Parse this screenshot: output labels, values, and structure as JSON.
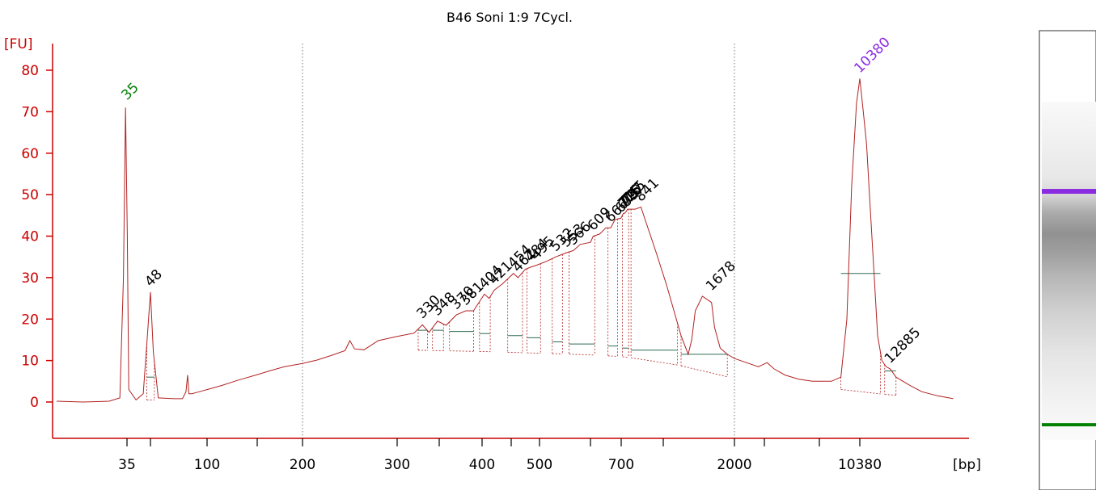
{
  "chart_data": {
    "type": "line",
    "title": "B46 Soni 1:9 7Cycl.",
    "ylabel": "[FU]",
    "xlabel": "[bp]",
    "ylim": [
      -7,
      85
    ],
    "yticks": [
      0,
      10,
      20,
      30,
      40,
      50,
      60,
      70,
      80
    ],
    "x_ticks": [
      {
        "label": "35",
        "x": 35
      },
      {
        "label": "",
        "x": 48
      },
      {
        "label": "100",
        "x": 100
      },
      {
        "label": "",
        "x": 150
      },
      {
        "label": "200",
        "x": 200
      },
      {
        "label": "300",
        "x": 300
      },
      {
        "label": "",
        "x": 350
      },
      {
        "label": "400",
        "x": 400
      },
      {
        "label": "",
        "x": 450
      },
      {
        "label": "500",
        "x": 500
      },
      {
        "label": "",
        "x": 600
      },
      {
        "label": "700",
        "x": 700
      },
      {
        "label": "",
        "x": 1000
      },
      {
        "label": "2000",
        "x": 2000
      },
      {
        "label": "",
        "x": 3000
      },
      {
        "label": "",
        "x": 7000
      },
      {
        "label": "10380",
        "x": 10380
      }
    ],
    "gridlines_x": [
      200,
      2000
    ],
    "colors": {
      "axis": "#cc0000",
      "trace": "#b22222",
      "lower_marker": "#008000",
      "upper_marker": "#8a2be2",
      "peak_label": "#000000"
    },
    "trace": [
      [
        20,
        0.2
      ],
      [
        25,
        0
      ],
      [
        30,
        0.2
      ],
      [
        33,
        1
      ],
      [
        34,
        30
      ],
      [
        34.6,
        71
      ],
      [
        35.2,
        40
      ],
      [
        36,
        3
      ],
      [
        40,
        0.5
      ],
      [
        44,
        2
      ],
      [
        46,
        14
      ],
      [
        48,
        26.5
      ],
      [
        49.5,
        12
      ],
      [
        52,
        1
      ],
      [
        60,
        0.8
      ],
      [
        65,
        0.8
      ],
      [
        67,
        2.5
      ],
      [
        68,
        6.5
      ],
      [
        70,
        2
      ],
      [
        75,
        2
      ],
      [
        85,
        2.4
      ],
      [
        100,
        3
      ],
      [
        115,
        4
      ],
      [
        130,
        5.2
      ],
      [
        150,
        6.6
      ],
      [
        165,
        7.6
      ],
      [
        180,
        8.5
      ],
      [
        200,
        9.3
      ],
      [
        215,
        10.1
      ],
      [
        230,
        11.2
      ],
      [
        245,
        12.4
      ],
      [
        250,
        14.8
      ],
      [
        255,
        12.8
      ],
      [
        265,
        12.6
      ],
      [
        280,
        14.8
      ],
      [
        300,
        15.8
      ],
      [
        320,
        16.6
      ],
      [
        330,
        18.6
      ],
      [
        338,
        16.8
      ],
      [
        348,
        19.5
      ],
      [
        358,
        18.5
      ],
      [
        370,
        21
      ],
      [
        381,
        22
      ],
      [
        390,
        22
      ],
      [
        404,
        26
      ],
      [
        412,
        25
      ],
      [
        421,
        27
      ],
      [
        435,
        28.5
      ],
      [
        454,
        31
      ],
      [
        462,
        30
      ],
      [
        475,
        32
      ],
      [
        484,
        32.5
      ],
      [
        495,
        33
      ],
      [
        515,
        34
      ],
      [
        532,
        35
      ],
      [
        553,
        36
      ],
      [
        566,
        36.5
      ],
      [
        580,
        38
      ],
      [
        600,
        38.5
      ],
      [
        609,
        40
      ],
      [
        630,
        40.5
      ],
      [
        650,
        42
      ],
      [
        666,
        42
      ],
      [
        680,
        44
      ],
      [
        699,
        44.3
      ],
      [
        716,
        45.5
      ],
      [
        725,
        45.5
      ],
      [
        737,
        46
      ],
      [
        745,
        46.5
      ],
      [
        760,
        46.5
      ],
      [
        780,
        46.5
      ],
      [
        800,
        46.5
      ],
      [
        841,
        47
      ],
      [
        870,
        44
      ],
      [
        950,
        36
      ],
      [
        1050,
        28
      ],
      [
        1150,
        22
      ],
      [
        1250,
        16
      ],
      [
        1350,
        11.5
      ],
      [
        1400,
        15
      ],
      [
        1450,
        22
      ],
      [
        1550,
        25.5
      ],
      [
        1678,
        24
      ],
      [
        1720,
        18
      ],
      [
        1800,
        13
      ],
      [
        1900,
        11.5
      ],
      [
        2000,
        10.5
      ],
      [
        2400,
        9.5
      ],
      [
        2800,
        8.5
      ],
      [
        3200,
        9.5
      ],
      [
        3700,
        8
      ],
      [
        4500,
        6.5
      ],
      [
        5500,
        5.5
      ],
      [
        6500,
        5
      ],
      [
        8000,
        5
      ],
      [
        8800,
        6
      ],
      [
        9300,
        20
      ],
      [
        9700,
        52
      ],
      [
        10100,
        72
      ],
      [
        10380,
        78
      ],
      [
        10700,
        70
      ],
      [
        11000,
        62
      ],
      [
        11300,
        48
      ],
      [
        11700,
        30
      ],
      [
        12000,
        16
      ],
      [
        12300,
        10
      ],
      [
        12600,
        8.5
      ],
      [
        12885,
        8
      ],
      [
        13300,
        6
      ],
      [
        15000,
        4
      ],
      [
        18000,
        2.5
      ],
      [
        22000,
        1.5
      ],
      [
        26000,
        0.8
      ]
    ],
    "markers": [
      {
        "label": "35",
        "x": 35,
        "y": 71.5,
        "kind": "lower"
      },
      {
        "label": "10380",
        "x": 10380,
        "y": 78,
        "kind": "upper"
      }
    ],
    "peak_labels": [
      {
        "label": "48",
        "x": 48,
        "y": 26.5
      },
      {
        "label": "330",
        "x": 330,
        "y": 18.8
      },
      {
        "label": "348",
        "x": 348,
        "y": 19.5
      },
      {
        "label": "370",
        "x": 370,
        "y": 21
      },
      {
        "label": "381",
        "x": 381,
        "y": 22
      },
      {
        "label": "404",
        "x": 404,
        "y": 26
      },
      {
        "label": "421",
        "x": 421,
        "y": 27
      },
      {
        "label": "454",
        "x": 454,
        "y": 31
      },
      {
        "label": "462",
        "x": 462,
        "y": 30
      },
      {
        "label": "484",
        "x": 484,
        "y": 32.5
      },
      {
        "label": "495",
        "x": 495,
        "y": 33
      },
      {
        "label": "532",
        "x": 532,
        "y": 35
      },
      {
        "label": "553",
        "x": 553,
        "y": 36
      },
      {
        "label": "566",
        "x": 566,
        "y": 36.5
      },
      {
        "label": "609",
        "x": 609,
        "y": 40
      },
      {
        "label": "666",
        "x": 666,
        "y": 42
      },
      {
        "label": "699",
        "x": 699,
        "y": 44.3
      },
      {
        "label": "716",
        "x": 716,
        "y": 45.5
      },
      {
        "label": "725",
        "x": 725,
        "y": 45.5
      },
      {
        "label": "737",
        "x": 737,
        "y": 46
      },
      {
        "label": "745",
        "x": 745,
        "y": 46.5
      },
      {
        "label": "841",
        "x": 841,
        "y": 47
      },
      {
        "label": "1678",
        "x": 1678,
        "y": 25.5
      },
      {
        "label": "12885",
        "x": 12885,
        "y": 8
      }
    ],
    "peak_bins": [
      {
        "x0": 46,
        "x1": 50,
        "level": 6
      },
      {
        "x0": 325,
        "x1": 336,
        "level": 17.3
      },
      {
        "x0": 342,
        "x1": 355,
        "level": 17.3
      },
      {
        "x0": 362,
        "x1": 390,
        "level": 17
      },
      {
        "x0": 397,
        "x1": 414,
        "level": 16.5
      },
      {
        "x0": 444,
        "x1": 470,
        "level": 16
      },
      {
        "x0": 478,
        "x1": 502,
        "level": 15.5
      },
      {
        "x0": 525,
        "x1": 545,
        "level": 14.5
      },
      {
        "x0": 558,
        "x1": 614,
        "level": 14
      },
      {
        "x0": 657,
        "x1": 688,
        "level": 13.5
      },
      {
        "x0": 709,
        "x1": 753,
        "level": 13
      },
      {
        "x0": 770,
        "x1": 1200,
        "level": 12.5
      },
      {
        "x0": 1250,
        "x1": 1900,
        "level": 11.5
      },
      {
        "x0": 8800,
        "x1": 12200,
        "level": 31
      },
      {
        "x0": 12500,
        "x1": 13300,
        "level": 7.5
      }
    ],
    "gel": {
      "bands": [
        {
          "pos": 0.225,
          "intensity": 0.12
        },
        {
          "pos": 0.27,
          "intensity": 0.2
        },
        {
          "pos": 0.33,
          "intensity": 0.45
        },
        {
          "pos": 0.39,
          "intensity": 0.58
        },
        {
          "pos": 0.45,
          "intensity": 0.5
        },
        {
          "pos": 0.52,
          "intensity": 0.38
        },
        {
          "pos": 0.62,
          "intensity": 0.25
        },
        {
          "pos": 0.74,
          "intensity": 0.14
        },
        {
          "pos": 0.86,
          "intensity": 0.08
        }
      ],
      "upper_marker_pos": 0.265,
      "lower_marker_pos": 0.955
    },
    "grid": false,
    "legend": "none"
  }
}
